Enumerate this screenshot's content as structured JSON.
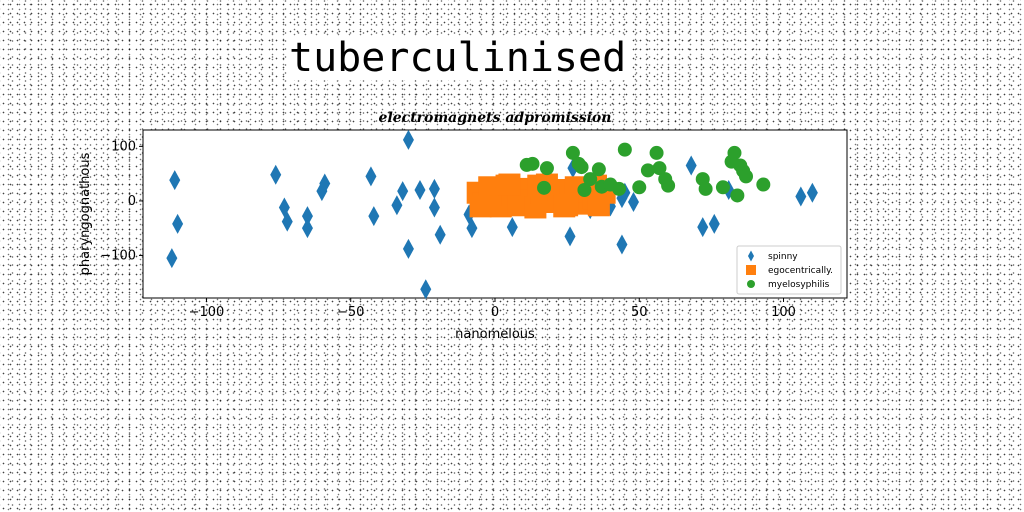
{
  "page_title": "tuberculinised",
  "chart_data": {
    "type": "scatter",
    "title": "electromagnets adpromission",
    "xlabel": "nanomelous",
    "ylabel": "pharyngognathous",
    "xlim": [
      -122,
      122
    ],
    "ylim": [
      -178,
      130
    ],
    "xticks": [
      -100,
      -50,
      0,
      50,
      100
    ],
    "yticks": [
      -100,
      0,
      100
    ],
    "legend_position": "lower right",
    "grid": false,
    "series": [
      {
        "name": "spinny",
        "marker": "diamond",
        "color": "#1f77b4",
        "points": [
          [
            -111,
            38
          ],
          [
            -110,
            -42
          ],
          [
            -112,
            -105
          ],
          [
            -76,
            48
          ],
          [
            -73,
            -12
          ],
          [
            -72,
            -38
          ],
          [
            -65,
            -28
          ],
          [
            -65,
            -50
          ],
          [
            -60,
            18
          ],
          [
            -59,
            32
          ],
          [
            -43,
            45
          ],
          [
            -42,
            -28
          ],
          [
            -34,
            -8
          ],
          [
            -32,
            18
          ],
          [
            -30,
            -88
          ],
          [
            -30,
            112
          ],
          [
            -26,
            20
          ],
          [
            -24,
            -162
          ],
          [
            -21,
            -12
          ],
          [
            -21,
            22
          ],
          [
            -19,
            -62
          ],
          [
            -9,
            -25
          ],
          [
            -8,
            -50
          ],
          [
            6,
            -48
          ],
          [
            17,
            5
          ],
          [
            26,
            -65
          ],
          [
            27,
            60
          ],
          [
            33,
            -15
          ],
          [
            38,
            -5
          ],
          [
            40,
            -10
          ],
          [
            44,
            5
          ],
          [
            44,
            -80
          ],
          [
            45,
            15
          ],
          [
            48,
            -2
          ],
          [
            68,
            65
          ],
          [
            72,
            -48
          ],
          [
            76,
            -42
          ],
          [
            81,
            20
          ],
          [
            106,
            8
          ],
          [
            110,
            15
          ]
        ]
      },
      {
        "name": "egocentrically.",
        "marker": "square",
        "color": "#ff7f0e",
        "points": [
          [
            -6,
            15
          ],
          [
            -4,
            -5
          ],
          [
            -2,
            25
          ],
          [
            0,
            5
          ],
          [
            2,
            -10
          ],
          [
            4,
            28
          ],
          [
            6,
            10
          ],
          [
            8,
            -8
          ],
          [
            10,
            22
          ],
          [
            12,
            0
          ],
          [
            14,
            -12
          ],
          [
            16,
            15
          ],
          [
            18,
            30
          ],
          [
            20,
            -2
          ],
          [
            22,
            20
          ],
          [
            24,
            -10
          ],
          [
            26,
            8
          ],
          [
            28,
            25
          ],
          [
            30,
            -5
          ],
          [
            32,
            18
          ],
          [
            34,
            5
          ],
          [
            36,
            -8
          ],
          [
            38,
            15
          ],
          [
            -5,
            -10
          ],
          [
            5,
            30
          ],
          [
            15,
            28
          ],
          [
            25,
            -8
          ],
          [
            35,
            28
          ]
        ]
      },
      {
        "name": "myelosyphilis",
        "marker": "circle",
        "color": "#2ca02c",
        "points": [
          [
            11,
            66
          ],
          [
            13,
            68
          ],
          [
            17,
            24
          ],
          [
            18,
            60
          ],
          [
            27,
            88
          ],
          [
            29,
            68
          ],
          [
            30,
            62
          ],
          [
            31,
            20
          ],
          [
            33,
            40
          ],
          [
            36,
            58
          ],
          [
            37,
            26
          ],
          [
            40,
            30
          ],
          [
            43,
            22
          ],
          [
            45,
            94
          ],
          [
            50,
            25
          ],
          [
            53,
            56
          ],
          [
            56,
            88
          ],
          [
            57,
            60
          ],
          [
            59,
            40
          ],
          [
            60,
            28
          ],
          [
            72,
            40
          ],
          [
            73,
            22
          ],
          [
            79,
            25
          ],
          [
            82,
            72
          ],
          [
            83,
            88
          ],
          [
            84,
            10
          ],
          [
            85,
            65
          ],
          [
            86,
            55
          ],
          [
            87,
            45
          ],
          [
            93,
            30
          ]
        ]
      }
    ]
  }
}
